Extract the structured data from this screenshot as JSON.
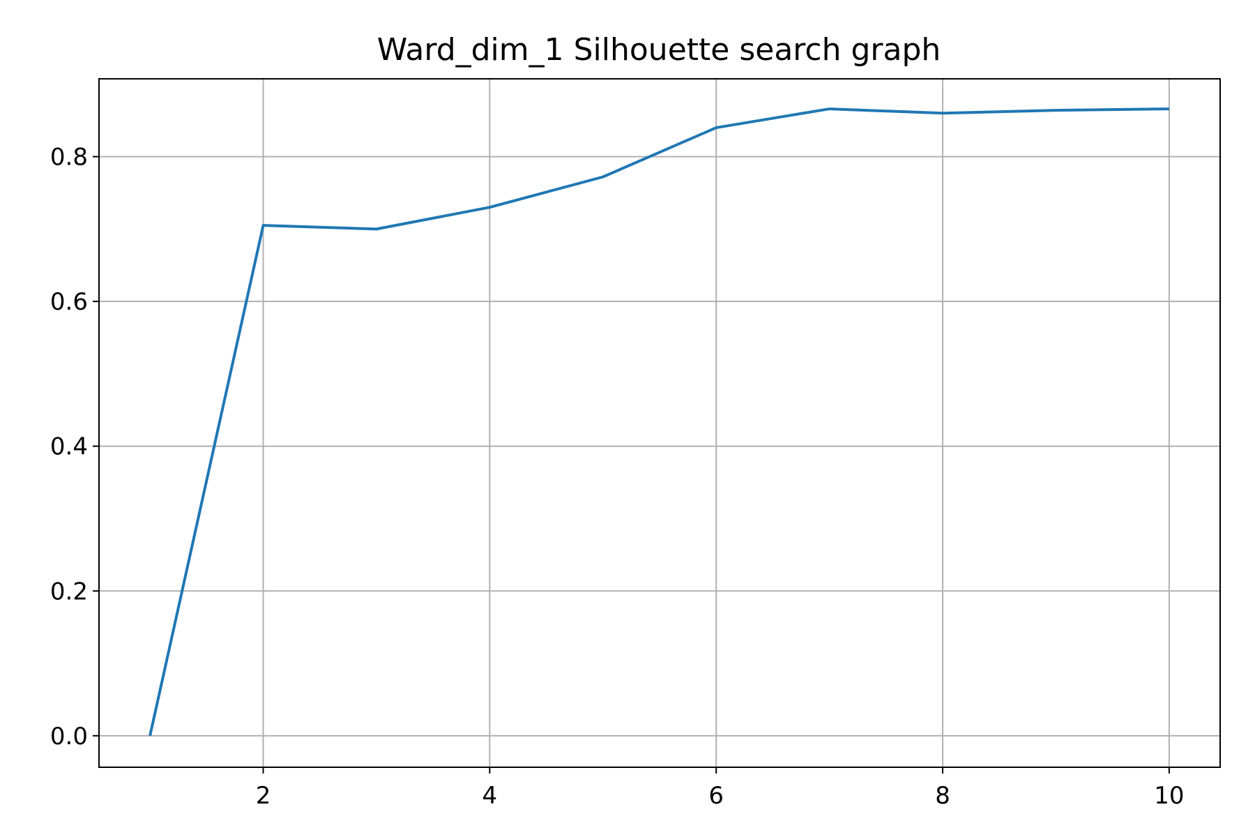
{
  "chart_data": {
    "type": "line",
    "title": "Ward_dim_1 Silhouette search graph",
    "xlabel": "",
    "ylabel": "",
    "xlim": [
      0.55,
      10.45
    ],
    "ylim": [
      -0.0435,
      0.9075
    ],
    "xticks": [
      2,
      4,
      6,
      8,
      10
    ],
    "yticks": [
      0.0,
      0.2,
      0.4,
      0.6,
      0.8
    ],
    "xtick_labels": [
      "2",
      "4",
      "6",
      "8",
      "10"
    ],
    "ytick_labels": [
      "0.0",
      "0.2",
      "0.4",
      "0.6",
      "0.8"
    ],
    "grid": true,
    "series": [
      {
        "color": "#1f77b4",
        "x": [
          1,
          2,
          3,
          4,
          5,
          6,
          7,
          8,
          9,
          10
        ],
        "y": [
          0.0,
          0.705,
          0.7,
          0.73,
          0.772,
          0.84,
          0.866,
          0.86,
          0.864,
          0.866
        ]
      }
    ]
  }
}
